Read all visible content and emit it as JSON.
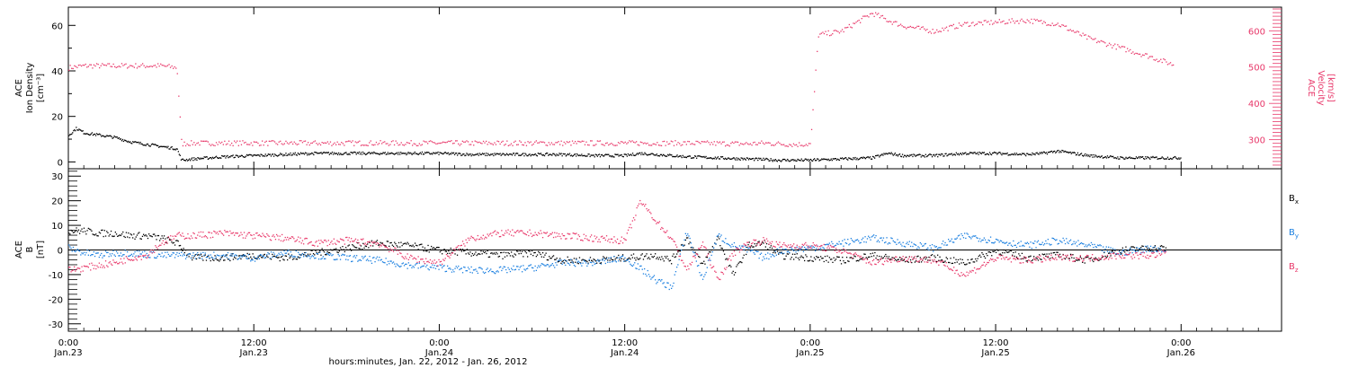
{
  "colors": {
    "axis": "#000000",
    "density": "#000000",
    "velocity": "#e8386a",
    "bx": "#000000",
    "by": "#1a7fe0",
    "bz": "#e8386a"
  },
  "x_axis": {
    "ticks": [
      {
        "time": "0:00",
        "date": "Jan.23",
        "hours": 0
      },
      {
        "time": "12:00",
        "date": "Jan.23",
        "hours": 12
      },
      {
        "time": "0:00",
        "date": "Jan.24",
        "hours": 24
      },
      {
        "time": "12:00",
        "date": "Jan.24",
        "hours": 36
      },
      {
        "time": "0:00",
        "date": "Jan.25",
        "hours": 48
      },
      {
        "time": "12:00",
        "date": "Jan.25",
        "hours": 60
      },
      {
        "time": "0:00",
        "date": "Jan.26",
        "hours": 72
      }
    ],
    "label": "hours:minutes, Jan. 22, 2012 - Jan. 26, 2012"
  },
  "chart_data": [
    {
      "type": "scatter",
      "panel": "top",
      "xlim_hours": [
        0,
        78.5
      ],
      "left_axis": {
        "label_lines": [
          "ACE",
          "Ion Density",
          "[cm⁻³]"
        ],
        "ylim": [
          -3,
          68
        ],
        "ticks": [
          0,
          20,
          40,
          60
        ]
      },
      "right_axis": {
        "label_lines": [
          "ACE",
          "Velocity",
          "[km/s]"
        ],
        "ylim": [
          220,
          665
        ],
        "ticks": [
          300,
          400,
          500,
          600
        ]
      },
      "series": [
        {
          "key": "density",
          "axis": "left",
          "x_hours": [
            0,
            0.5,
            1,
            2,
            3,
            4,
            5,
            6,
            7,
            7.3,
            8,
            10,
            12,
            14,
            16,
            18,
            20,
            22,
            24,
            26,
            28,
            30,
            32,
            34,
            36,
            37,
            38,
            40,
            42,
            44,
            46,
            48,
            50,
            52,
            53,
            54,
            56,
            58,
            60,
            62,
            63,
            64,
            65,
            66,
            68,
            70,
            72
          ],
          "values": [
            12,
            15,
            13,
            12,
            11,
            9,
            8,
            7,
            6,
            1,
            1.5,
            2.5,
            3,
            3.5,
            4,
            4,
            4,
            4,
            4,
            3.5,
            3.5,
            3.5,
            3.5,
            3,
            3,
            4,
            3.5,
            2.5,
            2,
            1.5,
            1,
            1,
            1.5,
            2,
            4,
            3,
            3,
            4,
            4,
            3.5,
            4,
            5,
            4,
            3,
            2,
            2,
            2
          ]
        },
        {
          "key": "velocity",
          "axis": "right",
          "x_hours": [
            0,
            1,
            2,
            3,
            4,
            5,
            6,
            7,
            7.1,
            7.3,
            8,
            12,
            16,
            20,
            24,
            28,
            32,
            36,
            40,
            44,
            45,
            46,
            47,
            48,
            48.5,
            50,
            51,
            52,
            53,
            54,
            56,
            58,
            60,
            62,
            64,
            66,
            68,
            70,
            72
          ],
          "values": [
            500,
            505,
            505,
            505,
            505,
            505,
            505,
            500,
            430,
            290,
            292,
            292,
            292,
            292,
            292,
            292,
            292,
            292,
            292,
            290,
            292,
            290,
            288,
            290,
            590,
            600,
            625,
            650,
            630,
            615,
            600,
            620,
            625,
            630,
            620,
            580,
            555,
            530,
            500
          ]
        }
      ]
    },
    {
      "type": "scatter",
      "panel": "bottom",
      "xlim_hours": [
        0,
        78.5
      ],
      "left_axis": {
        "label_lines": [
          "ACE",
          "B",
          "[nT]"
        ],
        "ylim": [
          -33,
          33
        ],
        "ticks": [
          -30,
          -20,
          -10,
          0,
          10,
          20,
          30
        ]
      },
      "legend": [
        {
          "key": "bx",
          "label": "B",
          "sub": "x"
        },
        {
          "key": "by",
          "label": "B",
          "sub": "y"
        },
        {
          "key": "bz",
          "label": "B",
          "sub": "z"
        }
      ],
      "series": [
        {
          "key": "bx",
          "x_hours": [
            0,
            1,
            2,
            3,
            4,
            5,
            6,
            7,
            8,
            10,
            12,
            14,
            16,
            18,
            20,
            22,
            24,
            26,
            28,
            30,
            32,
            34,
            36,
            38,
            39,
            40,
            41,
            42,
            43,
            44,
            45,
            46,
            48,
            50,
            52,
            54,
            56,
            58,
            60,
            62,
            64,
            66,
            68,
            70,
            71
          ],
          "values": [
            8,
            8,
            7,
            7,
            6,
            6,
            5,
            3,
            -3,
            -3,
            -2,
            -3,
            -1,
            1,
            3,
            2,
            0,
            -1,
            -2,
            -1,
            -4,
            -4,
            -3,
            -2,
            -4,
            5,
            -6,
            5,
            -10,
            2,
            3,
            -2,
            -3,
            -4,
            -2,
            -4,
            -3,
            -5,
            0,
            -3,
            -2,
            -4,
            0,
            1,
            1
          ]
        },
        {
          "key": "by",
          "x_hours": [
            0,
            1,
            2,
            3,
            4,
            6,
            8,
            10,
            12,
            14,
            16,
            18,
            20,
            22,
            24,
            26,
            28,
            30,
            32,
            34,
            36,
            38,
            39,
            40,
            41,
            42,
            43,
            44,
            45,
            46,
            48,
            50,
            52,
            54,
            56,
            58,
            60,
            62,
            64,
            66,
            68,
            70,
            71
          ],
          "values": [
            1,
            -1,
            -2,
            -1,
            -1,
            -2,
            -2,
            -2,
            -3,
            -1,
            -2,
            -3,
            -4,
            -6,
            -7,
            -8,
            -8,
            -7,
            -5,
            -5,
            -3,
            -12,
            -15,
            8,
            -12,
            6,
            2,
            0,
            -3,
            0,
            1,
            3,
            5,
            3,
            1,
            6,
            4,
            2,
            4,
            2,
            -1,
            1,
            0
          ]
        },
        {
          "key": "bz",
          "x_hours": [
            0,
            1,
            2,
            3,
            4,
            5,
            6,
            7,
            8,
            10,
            12,
            14,
            16,
            18,
            20,
            22,
            24,
            25,
            26,
            28,
            30,
            32,
            34,
            36,
            37,
            38,
            39,
            40,
            41,
            42,
            43,
            44,
            45,
            46,
            48,
            50,
            52,
            54,
            56,
            58,
            60,
            62,
            64,
            66,
            68,
            70,
            71
          ],
          "values": [
            -8,
            -7,
            -6,
            -5,
            -3,
            -2,
            3,
            6,
            6,
            7,
            6,
            5,
            3,
            4,
            3,
            -3,
            -5,
            0,
            5,
            7,
            7,
            6,
            5,
            4,
            20,
            12,
            5,
            -8,
            3,
            -12,
            -1,
            3,
            4,
            2,
            2,
            0,
            -5,
            -3,
            -4,
            -10,
            -3,
            -4,
            -3,
            -3,
            -2,
            -2,
            -1
          ]
        }
      ]
    }
  ]
}
